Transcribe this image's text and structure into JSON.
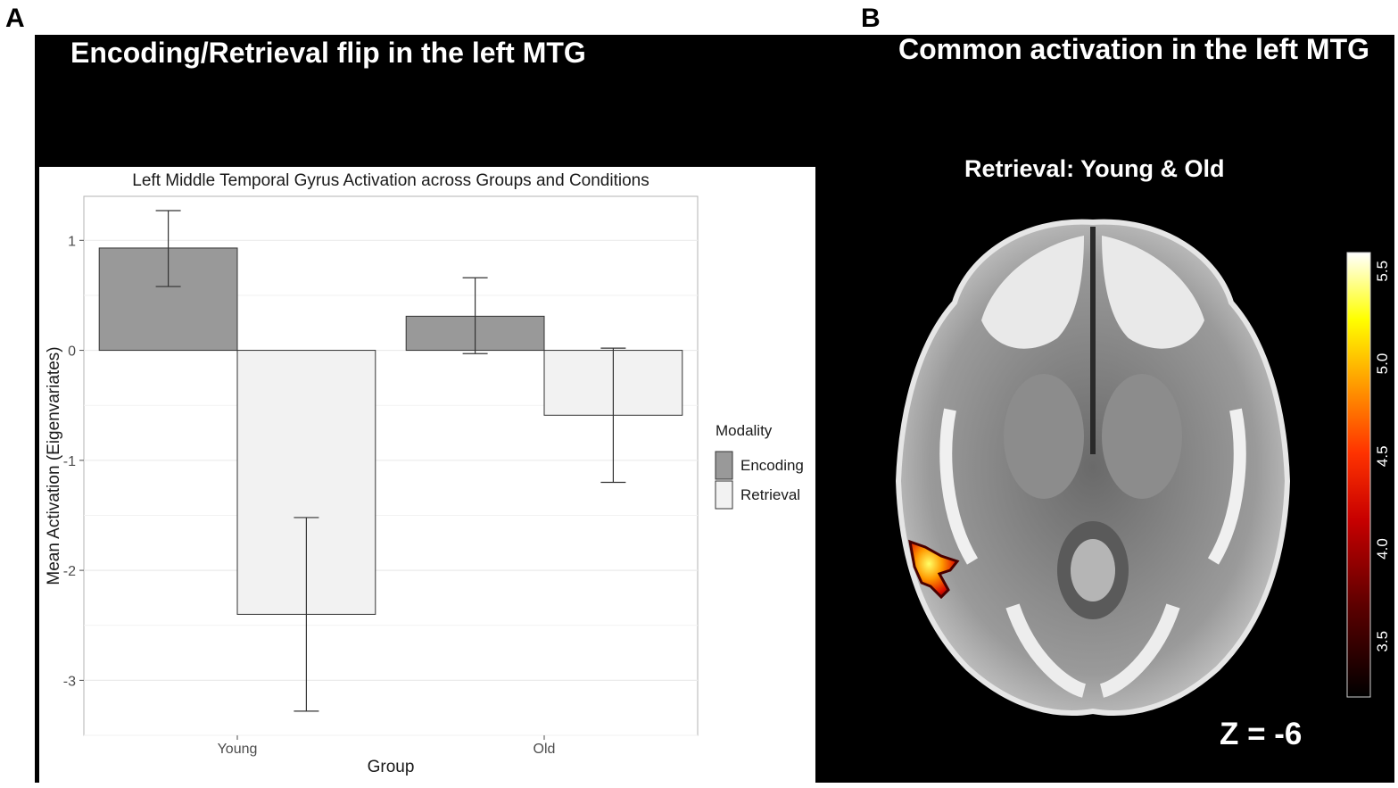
{
  "panels": {
    "a_letter": "A",
    "b_letter": "B",
    "a_title": "Encoding/Retrieval flip in the left MTG",
    "b_title": "Common activation in the left MTG",
    "b_subtitle": "Retrieval: Young & Old",
    "z_label": "Z = -6"
  },
  "colorbar": {
    "ticks": [
      "3.5",
      "4.0",
      "4.5",
      "5.0",
      "5.5"
    ],
    "colors": [
      "#000000",
      "#5a0000",
      "#c80000",
      "#ff3300",
      "#ff9900",
      "#ffff00",
      "#ffffff"
    ]
  },
  "chart_data": {
    "type": "bar",
    "title": "Left Middle Temporal Gyrus Activation across Groups and Conditions",
    "xlabel": "Group",
    "ylabel": "Mean Activation (Eigenvariates)",
    "categories": [
      "Young",
      "Old"
    ],
    "ylim": [
      -3.5,
      1.4
    ],
    "yticks": [
      -3,
      -2,
      -1,
      0,
      1
    ],
    "grid": true,
    "legend": {
      "title": "Modality",
      "position": "right"
    },
    "series": [
      {
        "name": "Encoding",
        "color": "#999999",
        "values": [
          0.93,
          0.31
        ],
        "err_low": [
          0.58,
          -0.03
        ],
        "err_high": [
          1.27,
          0.66
        ]
      },
      {
        "name": "Retrieval",
        "color": "#f2f2f2",
        "values": [
          -2.4,
          -0.59
        ],
        "err_low": [
          -3.28,
          -1.2
        ],
        "err_high": [
          -1.52,
          0.02
        ]
      }
    ]
  }
}
